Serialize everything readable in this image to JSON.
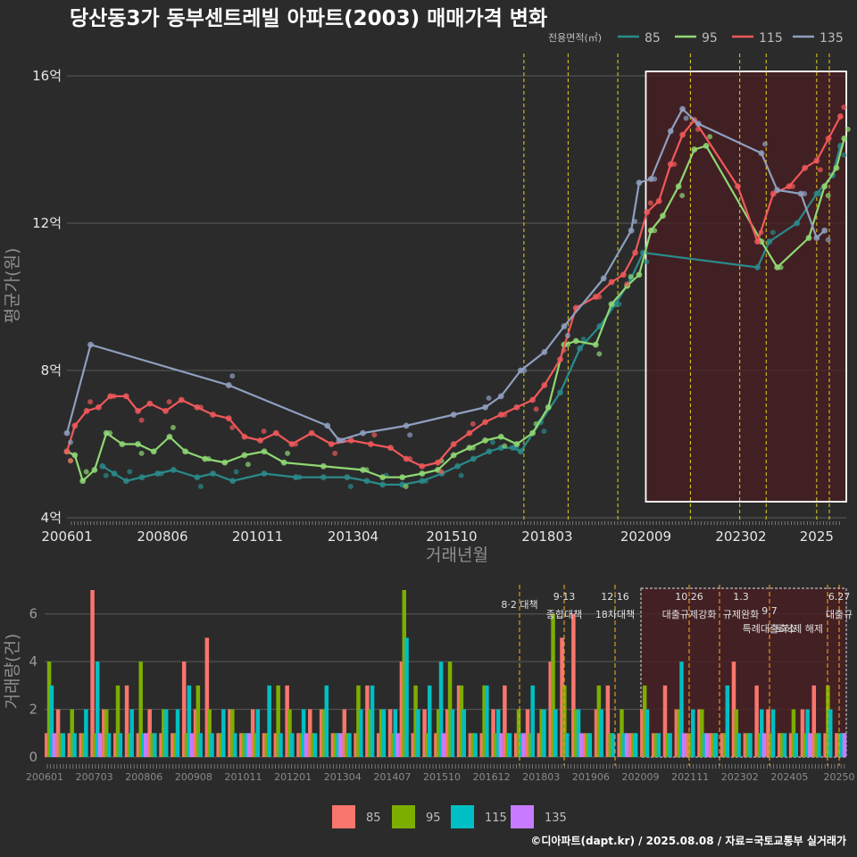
{
  "title": "당산동3가 동부센트레빌 아파트(2003) 매매가격 변화",
  "credit": "©디아파트(dapt.kr) / 2025.08.08 / 자료=국토교통부 실거래가",
  "legend_top": {
    "title": "전용면적(㎡)",
    "items": [
      {
        "label": "85",
        "color": "#2a8a8a"
      },
      {
        "label": "95",
        "color": "#8fd873"
      },
      {
        "label": "115",
        "color": "#f0585a"
      },
      {
        "label": "135",
        "color": "#8f9fc0"
      }
    ]
  },
  "legend_bottom": {
    "items": [
      {
        "label": "85",
        "color": "#f8766d"
      },
      {
        "label": "95",
        "color": "#7cae00"
      },
      {
        "label": "115",
        "color": "#00bfc4"
      },
      {
        "label": "135",
        "color": "#c77cff"
      }
    ]
  },
  "chart_data": [
    {
      "type": "line",
      "ylabel": "평균가(원)",
      "xlabel": "거래년월",
      "x_ticks": [
        "200601",
        "200806",
        "201011",
        "201304",
        "201510",
        "201803",
        "202009",
        "202302",
        "2025"
      ],
      "y_ticks": [
        "4억",
        "8억",
        "12억",
        "16억"
      ],
      "ylim": [
        4,
        16
      ],
      "xlim": [
        2006.0,
        2025.75
      ],
      "policy_lines": [
        2017.58,
        2018.7,
        2019.96,
        2021.8,
        2023.05,
        2023.72,
        2025.0,
        2025.32
      ],
      "highlight_period": [
        2020.67,
        2025.75
      ],
      "series": [
        {
          "name": "85",
          "points": [
            [
              2006.9,
              5.4
            ],
            [
              2007.2,
              5.2
            ],
            [
              2007.5,
              5.0
            ],
            [
              2007.9,
              5.1
            ],
            [
              2008.3,
              5.2
            ],
            [
              2008.7,
              5.3
            ],
            [
              2009.3,
              5.1
            ],
            [
              2009.7,
              5.2
            ],
            [
              2010.2,
              5.0
            ],
            [
              2011.0,
              5.2
            ],
            [
              2011.8,
              5.1
            ],
            [
              2012.5,
              5.1
            ],
            [
              2013.1,
              5.1
            ],
            [
              2013.6,
              5.0
            ],
            [
              2014.0,
              4.9
            ],
            [
              2014.5,
              4.9
            ],
            [
              2015.0,
              5.0
            ],
            [
              2015.5,
              5.2
            ],
            [
              2015.9,
              5.4
            ],
            [
              2016.3,
              5.6
            ],
            [
              2016.7,
              5.8
            ],
            [
              2017.0,
              5.9
            ],
            [
              2017.3,
              5.9
            ],
            [
              2017.5,
              5.8
            ],
            [
              2018.0,
              6.6
            ],
            [
              2018.5,
              7.4
            ],
            [
              2019.0,
              8.6
            ],
            [
              2019.5,
              9.2
            ],
            [
              2019.9,
              9.8
            ],
            [
              2020.3,
              10.5
            ],
            [
              2020.6,
              11.2
            ],
            [
              2023.5,
              10.8
            ],
            [
              2023.8,
              11.5
            ],
            [
              2024.5,
              12.0
            ],
            [
              2025.0,
              12.8
            ],
            [
              2025.4,
              13.3
            ],
            [
              2025.6,
              14.1
            ]
          ]
        },
        {
          "name": "95",
          "points": [
            [
              2006.0,
              5.8
            ],
            [
              2006.2,
              5.7
            ],
            [
              2006.4,
              5.0
            ],
            [
              2006.7,
              5.3
            ],
            [
              2007.0,
              6.3
            ],
            [
              2007.4,
              6.0
            ],
            [
              2007.8,
              6.0
            ],
            [
              2008.2,
              5.8
            ],
            [
              2008.6,
              6.2
            ],
            [
              2009.0,
              5.8
            ],
            [
              2009.5,
              5.6
            ],
            [
              2010.0,
              5.5
            ],
            [
              2010.5,
              5.7
            ],
            [
              2011.0,
              5.8
            ],
            [
              2011.5,
              5.5
            ],
            [
              2012.5,
              5.4
            ],
            [
              2013.5,
              5.3
            ],
            [
              2014.0,
              5.1
            ],
            [
              2014.5,
              5.1
            ],
            [
              2015.0,
              5.2
            ],
            [
              2015.4,
              5.3
            ],
            [
              2015.8,
              5.7
            ],
            [
              2016.2,
              5.9
            ],
            [
              2016.6,
              6.1
            ],
            [
              2017.0,
              6.2
            ],
            [
              2017.4,
              6.0
            ],
            [
              2017.8,
              6.3
            ],
            [
              2018.2,
              7.0
            ],
            [
              2018.6,
              8.7
            ],
            [
              2018.9,
              8.8
            ],
            [
              2019.4,
              8.7
            ],
            [
              2019.8,
              9.8
            ],
            [
              2020.2,
              10.3
            ],
            [
              2020.5,
              10.6
            ],
            [
              2020.8,
              11.8
            ],
            [
              2021.1,
              12.2
            ],
            [
              2021.5,
              13.0
            ],
            [
              2021.9,
              14.0
            ],
            [
              2022.2,
              14.1
            ],
            [
              2023.6,
              11.5
            ],
            [
              2024.0,
              10.8
            ],
            [
              2024.8,
              11.6
            ],
            [
              2025.2,
              13.0
            ],
            [
              2025.5,
              13.5
            ],
            [
              2025.7,
              14.3
            ]
          ]
        },
        {
          "name": "115",
          "points": [
            [
              2006.0,
              5.8
            ],
            [
              2006.2,
              6.5
            ],
            [
              2006.5,
              6.9
            ],
            [
              2006.8,
              7.0
            ],
            [
              2007.1,
              7.3
            ],
            [
              2007.5,
              7.3
            ],
            [
              2007.8,
              6.9
            ],
            [
              2008.1,
              7.1
            ],
            [
              2008.5,
              6.9
            ],
            [
              2008.9,
              7.2
            ],
            [
              2009.3,
              7.0
            ],
            [
              2009.7,
              6.8
            ],
            [
              2010.1,
              6.7
            ],
            [
              2010.5,
              6.2
            ],
            [
              2010.9,
              6.1
            ],
            [
              2011.3,
              6.3
            ],
            [
              2011.7,
              6.0
            ],
            [
              2012.2,
              6.3
            ],
            [
              2012.7,
              6.0
            ],
            [
              2013.2,
              6.1
            ],
            [
              2013.7,
              6.0
            ],
            [
              2014.2,
              5.9
            ],
            [
              2014.6,
              5.6
            ],
            [
              2015.0,
              5.4
            ],
            [
              2015.4,
              5.5
            ],
            [
              2015.8,
              6.0
            ],
            [
              2016.2,
              6.3
            ],
            [
              2016.6,
              6.6
            ],
            [
              2017.0,
              6.8
            ],
            [
              2017.4,
              7.0
            ],
            [
              2017.8,
              7.2
            ],
            [
              2018.1,
              7.6
            ],
            [
              2018.5,
              8.3
            ],
            [
              2018.9,
              9.7
            ],
            [
              2019.4,
              10.0
            ],
            [
              2019.8,
              10.4
            ],
            [
              2020.1,
              10.6
            ],
            [
              2020.4,
              11.2
            ],
            [
              2020.7,
              12.3
            ],
            [
              2021.0,
              12.6
            ],
            [
              2021.3,
              13.6
            ],
            [
              2021.6,
              14.4
            ],
            [
              2021.9,
              14.8
            ],
            [
              2023.0,
              13.0
            ],
            [
              2023.5,
              11.5
            ],
            [
              2023.9,
              12.8
            ],
            [
              2024.3,
              13.0
            ],
            [
              2024.7,
              13.5
            ],
            [
              2025.0,
              13.7
            ],
            [
              2025.3,
              14.3
            ],
            [
              2025.6,
              14.9
            ]
          ]
        },
        {
          "name": "135",
          "points": [
            [
              2006.0,
              6.3
            ],
            [
              2006.6,
              8.7
            ],
            [
              2010.1,
              7.6
            ],
            [
              2012.6,
              6.5
            ],
            [
              2012.9,
              6.1
            ],
            [
              2013.5,
              6.3
            ],
            [
              2014.6,
              6.5
            ],
            [
              2015.8,
              6.8
            ],
            [
              2016.6,
              7.0
            ],
            [
              2017.0,
              7.3
            ],
            [
              2017.5,
              8.0
            ],
            [
              2018.1,
              8.5
            ],
            [
              2018.6,
              9.2
            ],
            [
              2019.6,
              10.5
            ],
            [
              2020.3,
              11.8
            ],
            [
              2020.5,
              13.1
            ],
            [
              2020.8,
              13.2
            ],
            [
              2021.3,
              14.5
            ],
            [
              2021.6,
              15.1
            ],
            [
              2022.0,
              14.7
            ],
            [
              2023.6,
              13.9
            ],
            [
              2024.0,
              12.9
            ],
            [
              2024.6,
              12.8
            ],
            [
              2025.0,
              11.6
            ],
            [
              2025.2,
              11.8
            ]
          ]
        }
      ]
    },
    {
      "type": "bar",
      "ylabel": "거래량(건)",
      "x_ticks": [
        "200601",
        "200703",
        "200806",
        "200908",
        "201011",
        "201201",
        "201304",
        "201407",
        "201510",
        "201612",
        "201803",
        "201906",
        "202009",
        "202111",
        "202302",
        "202405",
        "20250"
      ],
      "y_ticks": [
        "0",
        "2",
        "4",
        "6"
      ],
      "ylim": [
        0,
        7
      ],
      "policy_markers": [
        {
          "date": "8·2",
          "label": "대책"
        },
        {
          "date": "9·13",
          "label": "종합대책"
        },
        {
          "date": "12·16",
          "label": "18차대책"
        },
        {
          "date": "10.26",
          "label": "대출규제강화"
        },
        {
          "date": "1.3",
          "label": "규제완화"
        },
        {
          "date": "9.7",
          "label": "특례대출축소"
        },
        {
          "date": "",
          "label": "토허제 해제"
        },
        {
          "date": "6.27",
          "label": "대출규"
        }
      ],
      "stacked_counts": {
        "85": [
          1,
          2,
          1,
          1,
          7,
          2,
          1,
          3,
          1,
          2,
          1,
          1,
          4,
          2,
          5,
          1,
          2,
          1,
          2,
          1,
          1,
          3,
          1,
          2,
          2,
          1,
          2,
          1,
          3,
          1,
          2,
          4,
          1,
          2,
          1,
          2,
          3,
          1,
          1,
          2,
          3,
          1,
          2,
          1,
          4,
          5,
          6,
          1,
          2,
          3,
          1,
          1,
          2,
          1,
          3,
          2,
          1,
          2,
          1,
          1,
          4,
          1,
          3,
          2,
          1,
          1,
          2,
          3,
          1,
          1
        ],
        "95": [
          4,
          1,
          2,
          1,
          1,
          2,
          3,
          1,
          4,
          1,
          2,
          1,
          1,
          3,
          2,
          1,
          2,
          1,
          1,
          1,
          3,
          2,
          1,
          1,
          2,
          1,
          1,
          3,
          2,
          2,
          1,
          7,
          3,
          1,
          2,
          4,
          3,
          1,
          3,
          1,
          1,
          2,
          1,
          2,
          6,
          3,
          2,
          1,
          3,
          1,
          2,
          1,
          3,
          1,
          1,
          2,
          1,
          2,
          1,
          1,
          2,
          1,
          1,
          1,
          1,
          2,
          1,
          1,
          3,
          1
        ],
        "115": [
          3,
          1,
          1,
          2,
          4,
          1,
          1,
          2,
          1,
          1,
          2,
          2,
          3,
          1,
          1,
          2,
          1,
          1,
          2,
          3,
          1,
          1,
          2,
          1,
          3,
          1,
          1,
          2,
          3,
          2,
          2,
          5,
          2,
          3,
          4,
          2,
          2,
          1,
          3,
          2,
          1,
          1,
          3,
          2,
          2,
          1,
          2,
          1,
          2,
          1,
          1,
          1,
          2,
          1,
          1,
          4,
          2,
          1,
          1,
          3,
          1,
          1,
          2,
          2,
          1,
          1,
          2,
          1,
          2,
          1
        ],
        "135": [
          1,
          0,
          0,
          0,
          1,
          0,
          0,
          0,
          1,
          0,
          0,
          0,
          1,
          0,
          0,
          0,
          0,
          1,
          0,
          0,
          0,
          0,
          1,
          0,
          0,
          1,
          0,
          0,
          0,
          0,
          1,
          0,
          0,
          0,
          1,
          0,
          0,
          0,
          0,
          1,
          0,
          1,
          0,
          0,
          0,
          0,
          1,
          0,
          0,
          0,
          1,
          0,
          0,
          0,
          0,
          1,
          0,
          1,
          0,
          0,
          0,
          0,
          1,
          0,
          0,
          0,
          1,
          0,
          0,
          1
        ]
      }
    }
  ]
}
